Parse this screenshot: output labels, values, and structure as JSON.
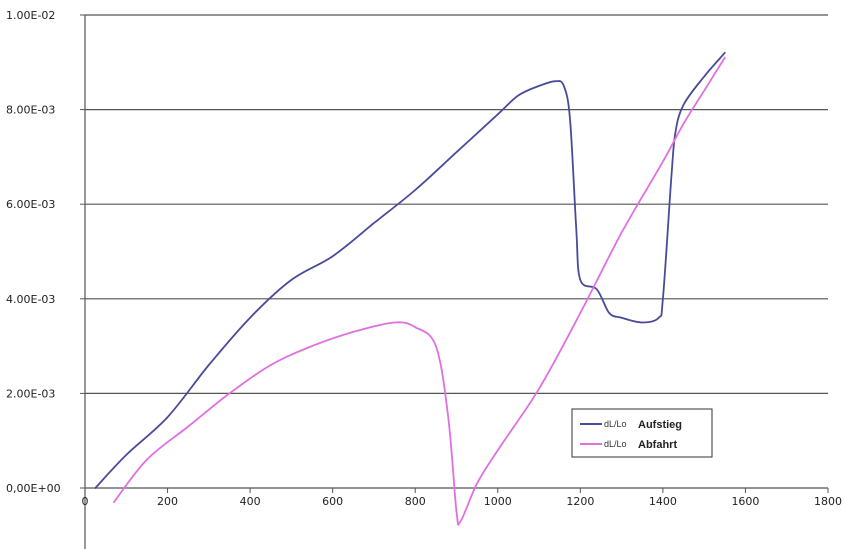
{
  "chart_data": {
    "type": "line",
    "title": "",
    "xlabel": "",
    "ylabel": "",
    "xlim": [
      0,
      1800
    ],
    "ylim": [
      -0.001,
      0.01
    ],
    "x_ticks": [
      0,
      200,
      400,
      600,
      800,
      1000,
      1200,
      1400,
      1600,
      1800
    ],
    "x_tick_labels": [
      "0",
      "200",
      "400",
      "600",
      "800",
      "1000",
      "1200",
      "1400",
      "1600",
      "1800"
    ],
    "y_ticks": [
      0,
      0.002,
      0.004,
      0.006,
      0.008,
      0.01
    ],
    "y_tick_labels": [
      "0,00E+00",
      "2.00E-03",
      "4.00E-03",
      "6.00E-03",
      "8.00E-03",
      "1.00E-02"
    ],
    "grid": "horizontal",
    "legend_position": "bottom-right",
    "series": [
      {
        "name": "Aufstieg",
        "label_prefix": "dL/Lo",
        "color": "#4a4a9a",
        "x": [
          25,
          100,
          200,
          300,
          400,
          500,
          600,
          700,
          800,
          900,
          1000,
          1050,
          1100,
          1140,
          1160,
          1175,
          1190,
          1200,
          1240,
          1270,
          1300,
          1350,
          1390,
          1400,
          1420,
          1430,
          1450,
          1500,
          1550
        ],
        "y": [
          0.0,
          0.0007,
          0.0015,
          0.0026,
          0.0036,
          0.0044,
          0.0049,
          0.0056,
          0.0063,
          0.0071,
          0.0079,
          0.0083,
          0.0085,
          0.0086,
          0.0085,
          0.0078,
          0.0055,
          0.0044,
          0.0042,
          0.0037,
          0.0036,
          0.0035,
          0.0036,
          0.004,
          0.0065,
          0.0075,
          0.0081,
          0.0087,
          0.0092
        ]
      },
      {
        "name": "Abfahrt",
        "label_prefix": "dL/Lo",
        "color": "#e070e0",
        "x": [
          70,
          150,
          250,
          350,
          450,
          550,
          650,
          750,
          800,
          850,
          880,
          900,
          910,
          950,
          1000,
          1100,
          1200,
          1300,
          1400,
          1450,
          1500,
          1550
        ],
        "y": [
          -0.0003,
          0.0006,
          0.0013,
          0.002,
          0.0026,
          0.003,
          0.0033,
          0.0035,
          0.0034,
          0.003,
          0.0015,
          -0.0005,
          -0.0007,
          0.0001,
          0.0008,
          0.0021,
          0.0037,
          0.0054,
          0.0069,
          0.0077,
          0.0084,
          0.0091
        ]
      }
    ]
  }
}
